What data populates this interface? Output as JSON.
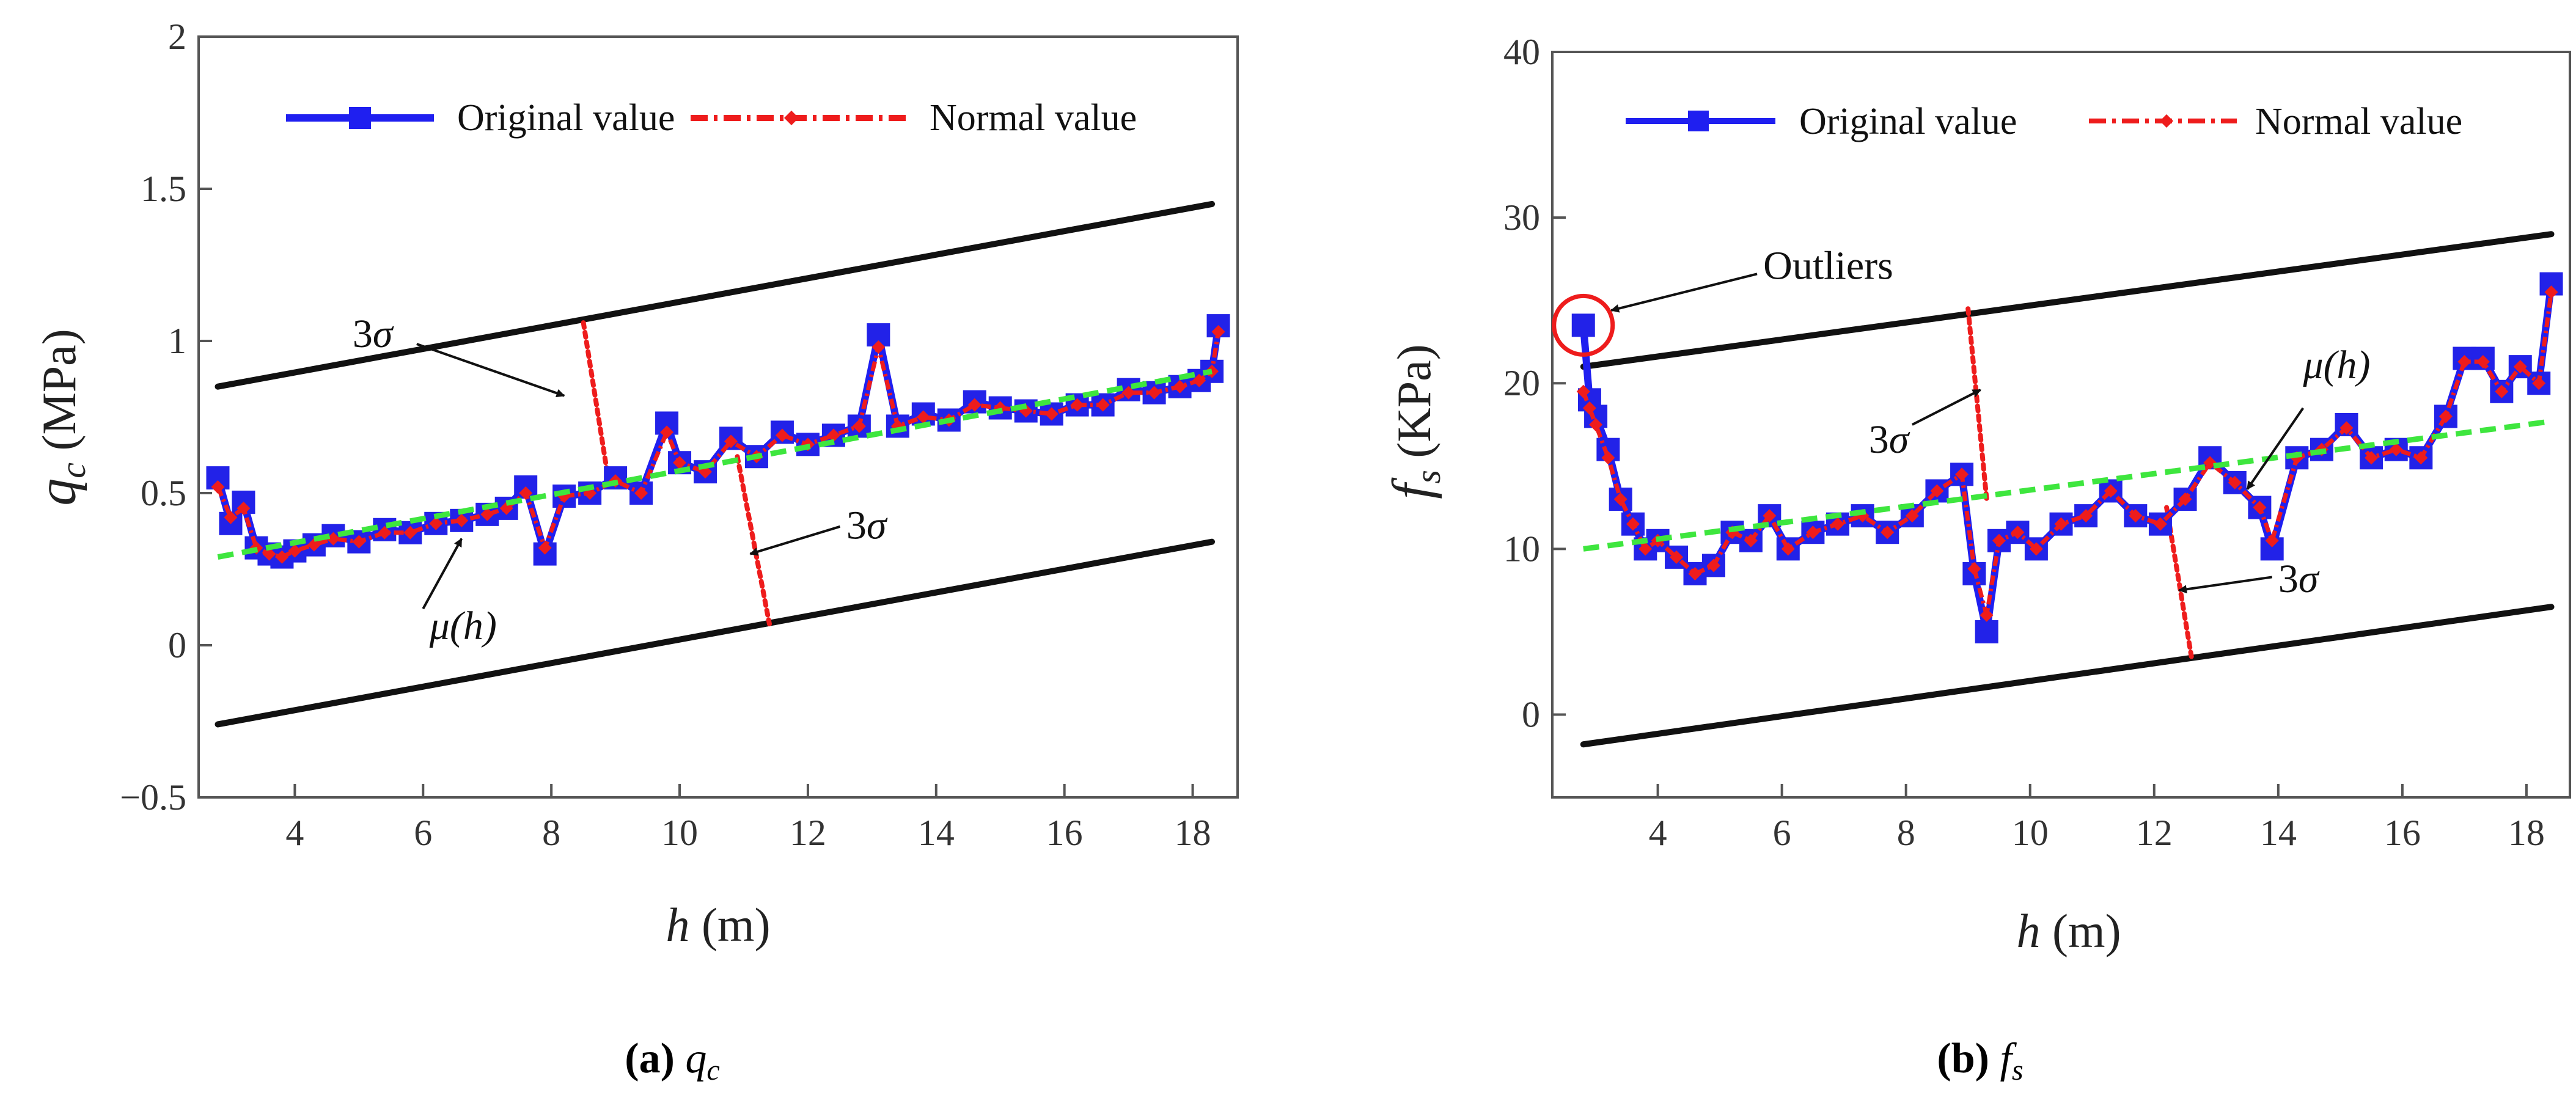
{
  "chart_data": [
    {
      "type": "line",
      "id": "qc",
      "caption": {
        "letter": "(a)",
        "symbol": "q",
        "sub": "c"
      },
      "ylabel": {
        "symbol": "q",
        "sub": "c",
        "unit": "(MPa)"
      },
      "xlabel": {
        "symbol": "h",
        "unit": "(m)"
      },
      "xlim": [
        2.5,
        18.7
      ],
      "ylim": [
        -0.5,
        2
      ],
      "xticks": [
        4,
        6,
        8,
        10,
        12,
        14,
        16,
        18
      ],
      "yticks": [
        -0.5,
        0,
        0.5,
        1,
        1.5,
        2
      ],
      "ytick_labels": [
        "−0.5",
        "0",
        "0.5",
        "1",
        "1.5",
        "2"
      ],
      "legend": {
        "original": "Original value",
        "normal": "Normal value"
      },
      "upper_bound": {
        "x": [
          2.8,
          18.3
        ],
        "y": [
          0.85,
          1.45
        ]
      },
      "lower_bound": {
        "x": [
          2.8,
          18.3
        ],
        "y": [
          -0.26,
          0.34
        ]
      },
      "trend": {
        "x": [
          2.8,
          18.3
        ],
        "y": [
          0.29,
          0.9
        ]
      },
      "series_x": [
        2.8,
        3.0,
        3.2,
        3.4,
        3.6,
        3.8,
        4.0,
        4.3,
        4.6,
        5.0,
        5.4,
        5.8,
        6.2,
        6.6,
        7.0,
        7.3,
        7.6,
        7.9,
        8.2,
        8.6,
        9.0,
        9.4,
        9.8,
        10.0,
        10.4,
        10.8,
        11.2,
        11.6,
        12.0,
        12.4,
        12.8,
        13.1,
        13.4,
        13.8,
        14.2,
        14.6,
        15.0,
        15.4,
        15.8,
        16.2,
        16.6,
        17.0,
        17.4,
        17.8,
        18.1,
        18.3,
        18.4
      ],
      "original_values": [
        0.55,
        0.4,
        0.47,
        0.32,
        0.3,
        0.29,
        0.31,
        0.33,
        0.36,
        0.34,
        0.38,
        0.37,
        0.4,
        0.41,
        0.43,
        0.45,
        0.52,
        0.3,
        0.49,
        0.5,
        0.55,
        0.5,
        0.73,
        0.6,
        0.57,
        0.68,
        0.62,
        0.7,
        0.66,
        0.69,
        0.72,
        1.02,
        0.72,
        0.76,
        0.74,
        0.8,
        0.78,
        0.77,
        0.76,
        0.79,
        0.79,
        0.84,
        0.83,
        0.85,
        0.87,
        0.9,
        1.05
      ],
      "normal_values": [
        0.52,
        0.42,
        0.45,
        0.32,
        0.3,
        0.29,
        0.31,
        0.33,
        0.35,
        0.34,
        0.37,
        0.37,
        0.4,
        0.41,
        0.43,
        0.45,
        0.5,
        0.32,
        0.49,
        0.5,
        0.54,
        0.5,
        0.7,
        0.6,
        0.57,
        0.67,
        0.62,
        0.69,
        0.66,
        0.69,
        0.72,
        0.98,
        0.72,
        0.75,
        0.74,
        0.79,
        0.78,
        0.77,
        0.76,
        0.79,
        0.79,
        0.83,
        0.83,
        0.85,
        0.87,
        0.9,
        1.03
      ],
      "sigma_lines": [
        {
          "x": [
            8.5,
            8.9
          ],
          "y": [
            1.06,
            0.53
          ]
        },
        {
          "x": [
            10.9,
            11.4
          ],
          "y": [
            0.62,
            0.07
          ]
        }
      ],
      "annotations": [
        {
          "kind": "3sigma",
          "text_x": 4.9,
          "text_y": 0.98,
          "arrow_from": [
            5.9,
            0.99
          ],
          "arrow_to": [
            8.2,
            0.82
          ]
        },
        {
          "kind": "3sigma",
          "text_x": 12.6,
          "text_y": 0.35,
          "arrow_from": [
            12.5,
            0.39
          ],
          "arrow_to": [
            11.1,
            0.3
          ]
        },
        {
          "kind": "mu",
          "text_x": 6.1,
          "text_y": 0.02,
          "arrow_from": [
            6.0,
            0.12
          ],
          "arrow_to": [
            6.6,
            0.35
          ]
        }
      ]
    },
    {
      "type": "line",
      "id": "fs",
      "caption": {
        "letter": "(b)",
        "symbol": "f",
        "sub": "s"
      },
      "ylabel": {
        "symbol": "f",
        "sub": "s",
        "unit": "(KPa)"
      },
      "xlabel": {
        "symbol": "h",
        "unit": "(m)"
      },
      "xlim": [
        2.3,
        18.7
      ],
      "ylim": [
        -5,
        40
      ],
      "xticks": [
        4,
        6,
        8,
        10,
        12,
        14,
        16,
        18
      ],
      "yticks": [
        0,
        10,
        20,
        30,
        40
      ],
      "ytick_labels": [
        "0",
        "10",
        "20",
        "30",
        "40"
      ],
      "legend": {
        "original": "Original value",
        "normal": "Normal value"
      },
      "upper_bound": {
        "x": [
          2.8,
          18.4
        ],
        "y": [
          21,
          29
        ]
      },
      "lower_bound": {
        "x": [
          2.8,
          18.4
        ],
        "y": [
          -1.8,
          6.5
        ]
      },
      "trend": {
        "x": [
          2.8,
          18.4
        ],
        "y": [
          10,
          17.7
        ]
      },
      "series_x": [
        2.8,
        2.9,
        3.0,
        3.2,
        3.4,
        3.6,
        3.8,
        4.0,
        4.3,
        4.6,
        4.9,
        5.2,
        5.5,
        5.8,
        6.1,
        6.5,
        6.9,
        7.3,
        7.7,
        8.1,
        8.5,
        8.9,
        9.1,
        9.3,
        9.5,
        9.8,
        10.1,
        10.5,
        10.9,
        11.3,
        11.7,
        12.1,
        12.5,
        12.9,
        13.3,
        13.7,
        13.9,
        14.3,
        14.7,
        15.1,
        15.5,
        15.9,
        16.3,
        16.7,
        17.0,
        17.3,
        17.6,
        17.9,
        18.2,
        18.4
      ],
      "original_values": [
        23.5,
        19,
        18,
        16,
        13,
        11.5,
        10,
        10.5,
        9.5,
        8.5,
        9,
        11,
        10.5,
        12,
        10,
        11,
        11.5,
        12,
        11,
        12,
        13.5,
        14.5,
        8.5,
        5,
        10.5,
        11,
        10,
        11.5,
        12,
        13.5,
        12,
        11.5,
        13,
        15.5,
        14,
        12.5,
        10,
        15.5,
        16,
        17.5,
        15.5,
        16,
        15.5,
        18,
        21.5,
        21.5,
        19.5,
        21,
        20,
        26
      ],
      "normal_values": [
        19.5,
        18.5,
        17.5,
        15.5,
        13,
        11.5,
        10,
        10.5,
        9.5,
        8.5,
        9,
        11,
        10.5,
        12,
        10,
        11,
        11.5,
        12,
        11,
        12,
        13.5,
        14.5,
        8.8,
        6,
        10.5,
        11,
        10,
        11.5,
        12,
        13.5,
        12,
        11.5,
        13,
        15.2,
        14,
        12.5,
        10.5,
        15.5,
        16,
        17.3,
        15.5,
        16,
        15.5,
        18,
        21.3,
        21.3,
        19.5,
        21,
        20,
        25.5
      ],
      "sigma_lines": [
        {
          "x": [
            9.0,
            9.3
          ],
          "y": [
            24.5,
            13
          ]
        },
        {
          "x": [
            12.2,
            12.6
          ],
          "y": [
            12.5,
            3.5
          ]
        }
      ],
      "outlier": {
        "label": "Outliers",
        "x": 2.8,
        "y": 23.5,
        "label_x": 5.7,
        "label_y": 26.3,
        "arrow_from": [
          5.6,
          26.6
        ],
        "arrow_to": [
          3.25,
          24.4
        ]
      },
      "annotations": [
        {
          "kind": "3sigma",
          "text_x": 7.4,
          "text_y": 15.8,
          "arrow_from": [
            8.1,
            17.5
          ],
          "arrow_to": [
            9.2,
            19.6
          ]
        },
        {
          "kind": "3sigma",
          "text_x": 14.0,
          "text_y": 7.4,
          "arrow_from": [
            13.9,
            8.3
          ],
          "arrow_to": [
            12.4,
            7.5
          ]
        },
        {
          "kind": "mu",
          "text_x": 14.4,
          "text_y": 20.3,
          "arrow_from": [
            14.4,
            18.5
          ],
          "arrow_to": [
            13.5,
            13.6
          ]
        }
      ]
    }
  ]
}
